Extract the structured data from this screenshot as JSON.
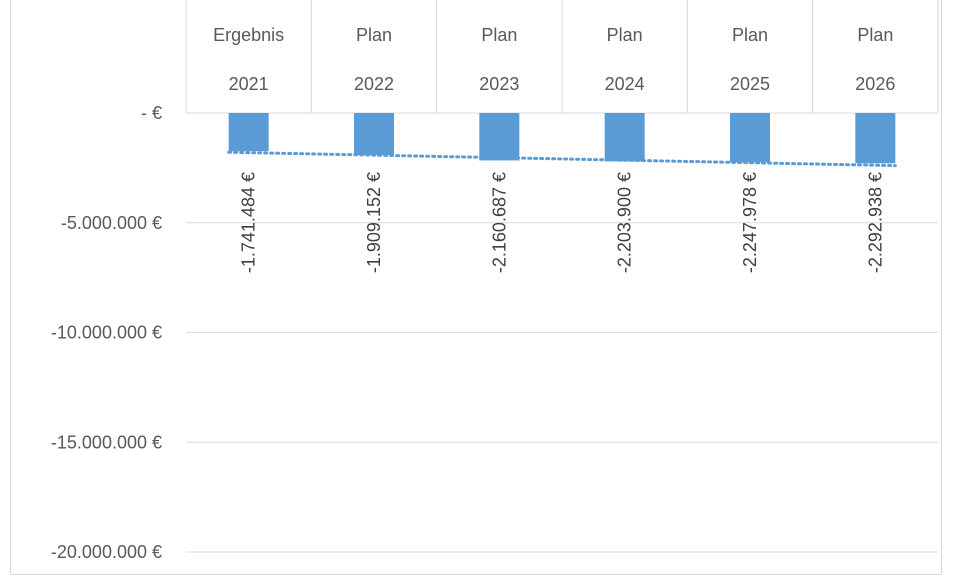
{
  "chart_data": {
    "type": "bar",
    "categories_line1": [
      "Ergebnis",
      "Plan",
      "Plan",
      "Plan",
      "Plan",
      "Plan"
    ],
    "categories_line2": [
      "2021",
      "2022",
      "2023",
      "2024",
      "2025",
      "2026"
    ],
    "values": [
      -1741484,
      -1909152,
      -2160687,
      -2203900,
      -2247978,
      -2292938
    ],
    "data_labels": [
      "-1.741.484 €",
      "-1.909.152 €",
      "-2.160.687 €",
      "-2.203.900 €",
      "-2.247.978 €",
      "-2.292.938 €"
    ],
    "ylim": [
      -20000000,
      0
    ],
    "yticks": [
      0,
      -5000000,
      -10000000,
      -15000000,
      -20000000
    ],
    "ytick_labels": [
      "-   €",
      "-5.000.000 €",
      "-10.000.000 €",
      "-15.000.000 €",
      "-20.000.000 €"
    ],
    "trendline": "linear",
    "grid": true,
    "colors": {
      "bar": "#5b9bd5",
      "trendline": "#5b9bd5",
      "grid": "#d9d9d9",
      "text": "#595959"
    }
  }
}
